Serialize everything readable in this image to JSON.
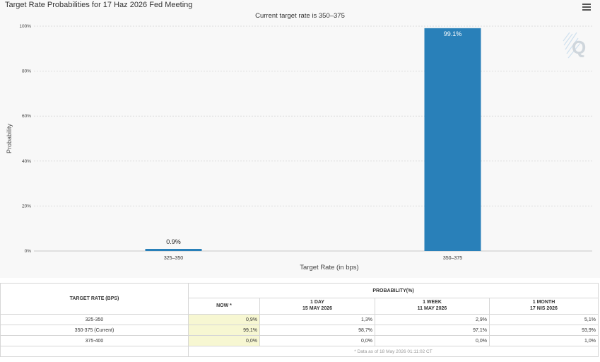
{
  "chart_data": {
    "type": "bar",
    "title": "Target Rate Probabilities for 17 Haz 2026 Fed Meeting",
    "subtitle": "Current target rate is 350–375",
    "xlabel": "Target Rate (in bps)",
    "ylabel": "Probability",
    "categories": [
      "325–350",
      "350–375"
    ],
    "values": [
      0.9,
      99.1
    ],
    "data_labels": [
      "0.9%",
      "99.1%"
    ],
    "ylim": [
      0,
      100
    ],
    "yticks": [
      0,
      20,
      40,
      60,
      80,
      100
    ],
    "ytick_labels": [
      "0%",
      "20%",
      "40%",
      "60%",
      "80%",
      "100%"
    ],
    "grid": true,
    "bar_color": "#2980b9",
    "label_inside": [
      false,
      true
    ]
  },
  "watermark": {
    "icon": "quikstrike-q-logo",
    "letter": "Q"
  },
  "menu": {
    "icon": "hamburger-menu-icon"
  },
  "table": {
    "target_header": "TARGET RATE (BPS)",
    "prob_header": "PROBABILITY(%)",
    "columns": [
      {
        "title": "NOW *",
        "date": ""
      },
      {
        "title": "1 DAY",
        "date": "15 MAY 2026"
      },
      {
        "title": "1 WEEK",
        "date": "11 MAY 2026"
      },
      {
        "title": "1 MONTH",
        "date": "17 NIS 2026"
      }
    ],
    "rows": [
      {
        "label": "325-350",
        "now": "0,9%",
        "day": "1,3%",
        "week": "2,9%",
        "month": "5,1%"
      },
      {
        "label": "350-375 (Current)",
        "now": "99,1%",
        "day": "98,7%",
        "week": "97,1%",
        "month": "93,9%"
      },
      {
        "label": "375-400",
        "now": "0,0%",
        "day": "0,0%",
        "week": "0,0%",
        "month": "1,0%"
      }
    ],
    "note": "* Data as of 18 May 2026 01:11:02 CT"
  }
}
